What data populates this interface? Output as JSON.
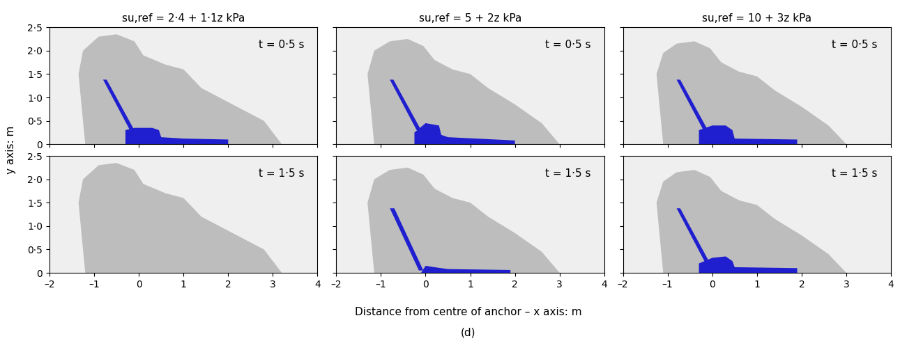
{
  "figure": {
    "xlabel": "Distance from centre of anchor – x axis: m",
    "ylabel": "y axis: m",
    "caption": "(d)"
  },
  "chart_data": [
    {
      "type": "area",
      "title": "su,ref = 2·4 + 1·1z kPa",
      "annotation": "t = 0·5 s",
      "xlim": [
        -2,
        4
      ],
      "ylim": [
        0,
        2.5
      ],
      "xticks": [
        {
          "value": -2,
          "label": "–2"
        },
        {
          "value": -1,
          "label": "–1"
        },
        0,
        1,
        2,
        3,
        4
      ],
      "yticks": [
        0,
        {
          "value": 0.5,
          "label": "0·5"
        },
        {
          "value": 1.0,
          "label": "1·0"
        },
        {
          "value": 1.5,
          "label": "1·5"
        },
        {
          "value": 2.0,
          "label": "2·0"
        },
        {
          "value": 2.5,
          "label": "2·5"
        }
      ],
      "tick_labels": "y",
      "regions": [
        {
          "color": "#bdbdbd",
          "x": [
            -1.2,
            -1.35,
            -1.25,
            -0.9,
            -0.5,
            -0.1,
            0.1,
            0.6,
            1.0,
            1.4,
            2.0,
            2.8,
            3.2
          ],
          "y": [
            0,
            1.5,
            2.0,
            2.3,
            2.35,
            2.2,
            1.9,
            1.7,
            1.6,
            1.2,
            0.9,
            0.5,
            0
          ]
        },
        {
          "color": "#1f1fd0",
          "x": [
            -0.8,
            -0.72,
            -0.1,
            -0.2
          ],
          "y": [
            1.38,
            1.38,
            0.3,
            0.3
          ]
        },
        {
          "color": "#1f1fd0",
          "x": [
            -0.3,
            -0.3,
            -0.1,
            0.3,
            0.45,
            0.5,
            1.0,
            2.0,
            2.0
          ],
          "y": [
            0,
            0.3,
            0.35,
            0.35,
            0.3,
            0.15,
            0.12,
            0.1,
            0
          ]
        }
      ]
    },
    {
      "type": "area",
      "title": "su,ref = 5 + 2z kPa",
      "annotation": "t = 0·5 s",
      "xlim": [
        -2,
        4
      ],
      "ylim": [
        0,
        2.5
      ],
      "xticks": [
        {
          "value": -2,
          "label": "–2"
        },
        {
          "value": -1,
          "label": "–1"
        },
        0,
        1,
        2,
        3,
        4
      ],
      "yticks": [
        0,
        {
          "value": 0.5,
          "label": "0·5"
        },
        {
          "value": 1.0,
          "label": "1·0"
        },
        {
          "value": 1.5,
          "label": "1·5"
        },
        {
          "value": 2.0,
          "label": "2·0"
        },
        {
          "value": 2.5,
          "label": "2·5"
        }
      ],
      "tick_labels": false,
      "regions": [
        {
          "color": "#bdbdbd",
          "x": [
            -1.15,
            -1.3,
            -1.15,
            -0.8,
            -0.4,
            -0.05,
            0.2,
            0.6,
            1.0,
            1.4,
            2.0,
            2.6,
            3.0
          ],
          "y": [
            0,
            1.5,
            2.0,
            2.2,
            2.25,
            2.1,
            1.8,
            1.6,
            1.5,
            1.2,
            0.85,
            0.45,
            0
          ]
        },
        {
          "color": "#1f1fd0",
          "x": [
            -0.8,
            -0.72,
            -0.1,
            -0.2
          ],
          "y": [
            1.38,
            1.38,
            0.3,
            0.3
          ]
        },
        {
          "color": "#1f1fd0",
          "x": [
            -0.25,
            -0.25,
            0.0,
            0.3,
            0.35,
            0.5,
            2.0,
            2.0
          ],
          "y": [
            0,
            0.25,
            0.45,
            0.4,
            0.2,
            0.15,
            0.08,
            0
          ]
        }
      ]
    },
    {
      "type": "area",
      "title": "su,ref = 10 + 3z kPa",
      "annotation": "t = 0·5 s",
      "xlim": [
        -2,
        4
      ],
      "ylim": [
        0,
        2.5
      ],
      "xticks": [
        {
          "value": -2,
          "label": "–2"
        },
        {
          "value": -1,
          "label": "–1"
        },
        0,
        1,
        2,
        3,
        4
      ],
      "yticks": [
        0,
        {
          "value": 0.5,
          "label": "0·5"
        },
        {
          "value": 1.0,
          "label": "1·0"
        },
        {
          "value": 1.5,
          "label": "1·5"
        },
        {
          "value": 2.0,
          "label": "2·0"
        },
        {
          "value": 2.5,
          "label": "2·5"
        }
      ],
      "tick_labels": false,
      "regions": [
        {
          "color": "#bdbdbd",
          "x": [
            -1.1,
            -1.25,
            -1.1,
            -0.8,
            -0.4,
            -0.05,
            0.2,
            0.6,
            1.0,
            1.4,
            2.0,
            2.6,
            3.0
          ],
          "y": [
            0,
            1.5,
            1.95,
            2.15,
            2.2,
            2.05,
            1.75,
            1.55,
            1.45,
            1.15,
            0.8,
            0.4,
            0
          ]
        },
        {
          "color": "#1f1fd0",
          "x": [
            -0.8,
            -0.72,
            -0.1,
            -0.2
          ],
          "y": [
            1.38,
            1.38,
            0.3,
            0.3
          ]
        },
        {
          "color": "#1f1fd0",
          "x": [
            -0.3,
            -0.3,
            0.0,
            0.3,
            0.45,
            0.5,
            1.9,
            1.9
          ],
          "y": [
            0,
            0.3,
            0.4,
            0.4,
            0.3,
            0.12,
            0.1,
            0
          ]
        }
      ]
    },
    {
      "type": "area",
      "annotation": "t = 1·5 s",
      "xlim": [
        -2,
        4
      ],
      "ylim": [
        0,
        2.5
      ],
      "xticks": [
        {
          "value": -2,
          "label": "–2"
        },
        {
          "value": -1,
          "label": "–1"
        },
        0,
        1,
        2,
        3,
        4
      ],
      "yticks": [
        0,
        {
          "value": 0.5,
          "label": "0·5"
        },
        {
          "value": 1.0,
          "label": "1·0"
        },
        {
          "value": 1.5,
          "label": "1·5"
        },
        {
          "value": 2.0,
          "label": "2·0"
        },
        {
          "value": 2.5,
          "label": "2·5"
        }
      ],
      "tick_labels": true,
      "regions": [
        {
          "color": "#bdbdbd",
          "x": [
            -1.2,
            -1.35,
            -1.25,
            -0.9,
            -0.5,
            -0.1,
            0.1,
            0.6,
            1.0,
            1.4,
            2.0,
            2.8,
            3.2
          ],
          "y": [
            0,
            1.5,
            2.0,
            2.3,
            2.35,
            2.2,
            1.9,
            1.7,
            1.6,
            1.2,
            0.9,
            0.5,
            0
          ]
        }
      ]
    },
    {
      "type": "area",
      "annotation": "t = 1·5 s",
      "xlim": [
        -2,
        4
      ],
      "ylim": [
        0,
        2.5
      ],
      "xticks": [
        {
          "value": -2,
          "label": "–2"
        },
        {
          "value": -1,
          "label": "–1"
        },
        0,
        1,
        2,
        3,
        4
      ],
      "yticks": [
        0,
        {
          "value": 0.5,
          "label": "0·5"
        },
        {
          "value": 1.0,
          "label": "1·0"
        },
        {
          "value": 1.5,
          "label": "1·5"
        },
        {
          "value": 2.0,
          "label": "2·0"
        },
        {
          "value": 2.5,
          "label": "2·5"
        }
      ],
      "tick_labels": "x",
      "regions": [
        {
          "color": "#bdbdbd",
          "x": [
            -1.15,
            -1.3,
            -1.15,
            -0.8,
            -0.4,
            -0.05,
            0.2,
            0.6,
            1.0,
            1.4,
            2.0,
            2.6,
            3.0
          ],
          "y": [
            0,
            1.5,
            2.0,
            2.2,
            2.25,
            2.1,
            1.8,
            1.6,
            1.5,
            1.2,
            0.85,
            0.45,
            0
          ]
        },
        {
          "color": "#1f1fd0",
          "x": [
            -0.8,
            -0.7,
            -0.05,
            -0.15
          ],
          "y": [
            1.38,
            1.38,
            0.05,
            0.05
          ]
        },
        {
          "color": "#1f1fd0",
          "x": [
            -0.1,
            0.0,
            0.2,
            0.5,
            1.9,
            1.9
          ],
          "y": [
            0,
            0.15,
            0.12,
            0.08,
            0.06,
            0
          ]
        }
      ]
    },
    {
      "type": "area",
      "annotation": "t = 1·5 s",
      "xlim": [
        -2,
        4
      ],
      "ylim": [
        0,
        2.5
      ],
      "xticks": [
        {
          "value": -2,
          "label": "–2"
        },
        {
          "value": -1,
          "label": "–1"
        },
        0,
        1,
        2,
        3,
        4
      ],
      "yticks": [
        0,
        {
          "value": 0.5,
          "label": "0·5"
        },
        {
          "value": 1.0,
          "label": "1·0"
        },
        {
          "value": 1.5,
          "label": "1·5"
        },
        {
          "value": 2.0,
          "label": "2·0"
        },
        {
          "value": 2.5,
          "label": "2·5"
        }
      ],
      "tick_labels": "x",
      "regions": [
        {
          "color": "#bdbdbd",
          "x": [
            -1.1,
            -1.25,
            -1.1,
            -0.8,
            -0.4,
            -0.05,
            0.2,
            0.6,
            1.0,
            1.4,
            2.0,
            2.6,
            3.0
          ],
          "y": [
            0,
            1.5,
            1.95,
            2.15,
            2.2,
            2.05,
            1.75,
            1.55,
            1.45,
            1.15,
            0.8,
            0.4,
            0
          ]
        },
        {
          "color": "#1f1fd0",
          "x": [
            -0.8,
            -0.72,
            -0.05,
            -0.15
          ],
          "y": [
            1.38,
            1.38,
            0.2,
            0.2
          ]
        },
        {
          "color": "#1f1fd0",
          "x": [
            -0.3,
            -0.3,
            0.0,
            0.3,
            0.45,
            0.5,
            1.9,
            1.9
          ],
          "y": [
            0,
            0.2,
            0.32,
            0.35,
            0.25,
            0.12,
            0.1,
            0
          ]
        }
      ]
    }
  ]
}
